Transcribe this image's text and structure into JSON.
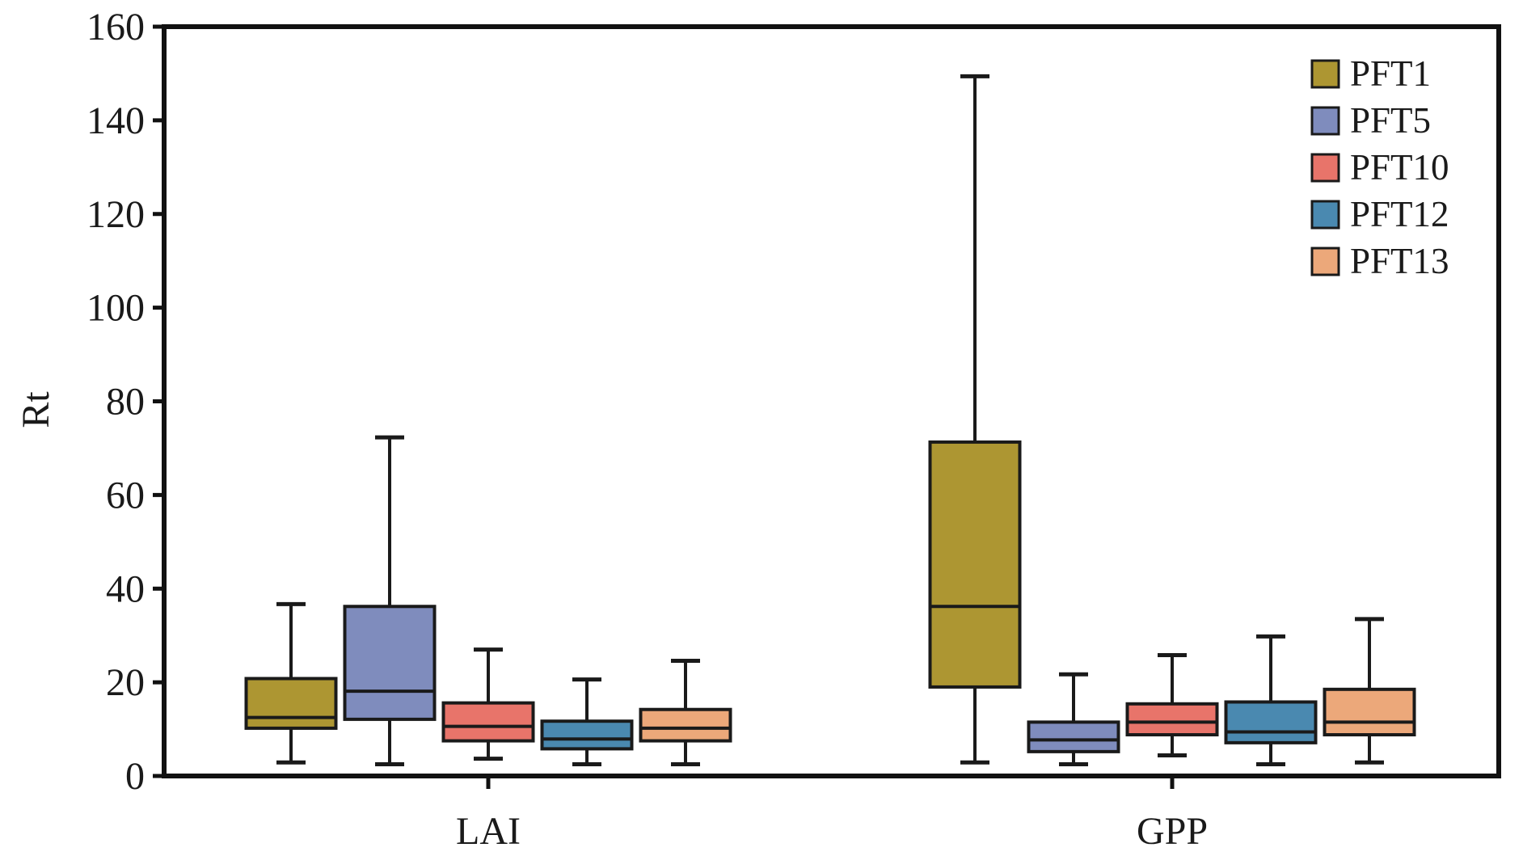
{
  "chart_data": {
    "type": "box",
    "title": "",
    "xlabel": "",
    "ylabel": "Rt",
    "ylim": [
      0,
      160
    ],
    "yticks": [
      "0",
      "20",
      "40",
      "60",
      "80",
      "100",
      "120",
      "140",
      "160"
    ],
    "grid": false,
    "legend_position": "top-right",
    "categories": [
      "LAI",
      "GPP"
    ],
    "series": [
      {
        "name": "PFT1",
        "color": "#ad9632",
        "boxes": [
          {
            "min": 2.9,
            "q1": 10.2,
            "median": 12.5,
            "q3": 20.8,
            "max": 36.7
          },
          {
            "min": 2.9,
            "q1": 19.0,
            "median": 36.2,
            "q3": 71.3,
            "max": 149.4
          }
        ]
      },
      {
        "name": "PFT5",
        "color": "#7f8cbd",
        "boxes": [
          {
            "min": 2.5,
            "q1": 12.1,
            "median": 18.1,
            "q3": 36.2,
            "max": 72.3
          },
          {
            "min": 2.5,
            "q1": 5.2,
            "median": 7.7,
            "q3": 11.5,
            "max": 21.7
          }
        ]
      },
      {
        "name": "PFT10",
        "color": "#e8746a",
        "boxes": [
          {
            "min": 3.7,
            "q1": 7.5,
            "median": 10.6,
            "q3": 15.6,
            "max": 27.0
          },
          {
            "min": 4.4,
            "q1": 8.8,
            "median": 11.5,
            "q3": 15.4,
            "max": 25.8
          }
        ]
      },
      {
        "name": "PFT12",
        "color": "#4a89b0",
        "boxes": [
          {
            "min": 2.5,
            "q1": 5.8,
            "median": 7.9,
            "q3": 11.7,
            "max": 20.6
          },
          {
            "min": 2.5,
            "q1": 7.1,
            "median": 9.4,
            "q3": 15.8,
            "max": 29.8
          }
        ]
      },
      {
        "name": "PFT13",
        "color": "#eca87a",
        "boxes": [
          {
            "min": 2.5,
            "q1": 7.5,
            "median": 10.2,
            "q3": 14.2,
            "max": 24.6
          },
          {
            "min": 2.9,
            "q1": 8.8,
            "median": 11.5,
            "q3": 18.5,
            "max": 33.5
          }
        ]
      }
    ]
  }
}
